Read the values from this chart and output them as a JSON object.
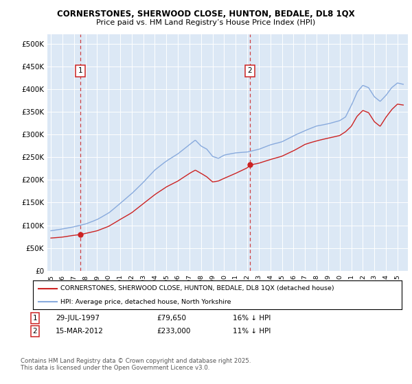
{
  "title1": "CORNERSTONES, SHERWOOD CLOSE, HUNTON, BEDALE, DL8 1QX",
  "title2": "Price paid vs. HM Land Registry’s House Price Index (HPI)",
  "plot_bg_color": "#dce8f5",
  "ylim": [
    0,
    500000
  ],
  "yticks": [
    0,
    50000,
    100000,
    150000,
    200000,
    250000,
    300000,
    350000,
    400000,
    450000,
    500000
  ],
  "ytick_labels": [
    "£0",
    "£50K",
    "£100K",
    "£150K",
    "£200K",
    "£250K",
    "£300K",
    "£350K",
    "£400K",
    "£450K",
    "£500K"
  ],
  "sale1_year": 1997.57,
  "sale1_price": 79650,
  "sale2_year": 2012.21,
  "sale2_price": 233000,
  "legend_line1": "CORNERSTONES, SHERWOOD CLOSE, HUNTON, BEDALE, DL8 1QX (detached house)",
  "legend_line2": "HPI: Average price, detached house, North Yorkshire",
  "footer": "Contains HM Land Registry data © Crown copyright and database right 2025.\nThis data is licensed under the Open Government Licence v3.0.",
  "line_red": "#cc2222",
  "line_blue": "#88aadd",
  "grid_color": "#ffffff",
  "hpi_knots_x": [
    1995,
    1996,
    1997,
    1998,
    1999,
    2000,
    2001,
    2002,
    2003,
    2004,
    2005,
    2006,
    2007,
    2007.5,
    2008,
    2008.5,
    2009,
    2009.5,
    2010,
    2011,
    2012,
    2013,
    2014,
    2015,
    2016,
    2017,
    2018,
    2019,
    2020,
    2020.5,
    2021,
    2021.5,
    2022,
    2022.5,
    2023,
    2023.5,
    2024,
    2024.5,
    2025,
    2025.5
  ],
  "hpi_knots_y": [
    88000,
    92000,
    97000,
    103000,
    113000,
    127000,
    148000,
    170000,
    195000,
    222000,
    242000,
    258000,
    278000,
    288000,
    275000,
    268000,
    252000,
    248000,
    255000,
    260000,
    262000,
    268000,
    278000,
    285000,
    298000,
    310000,
    320000,
    325000,
    332000,
    340000,
    365000,
    395000,
    410000,
    405000,
    385000,
    375000,
    388000,
    405000,
    415000,
    412000
  ],
  "red_knots_x": [
    1995,
    1996,
    1997,
    1997.57,
    1998,
    1999,
    2000,
    2001,
    2002,
    2003,
    2004,
    2005,
    2006,
    2007,
    2007.5,
    2008,
    2008.5,
    2009,
    2009.5,
    2010,
    2011,
    2012,
    2012.21,
    2013,
    2014,
    2015,
    2016,
    2017,
    2018,
    2019,
    2020,
    2020.5,
    2021,
    2021.5,
    2022,
    2022.5,
    2023,
    2023.5,
    2024,
    2024.5,
    2025,
    2025.5
  ],
  "red_knots_y": [
    72000,
    74000,
    78000,
    79650,
    82000,
    88000,
    98000,
    113000,
    128000,
    148000,
    168000,
    185000,
    198000,
    215000,
    222000,
    215000,
    207000,
    196000,
    198000,
    204000,
    215000,
    227000,
    233000,
    237000,
    245000,
    252000,
    264000,
    278000,
    286000,
    292000,
    298000,
    306000,
    318000,
    340000,
    353000,
    348000,
    328000,
    318000,
    338000,
    355000,
    367000,
    365000
  ]
}
